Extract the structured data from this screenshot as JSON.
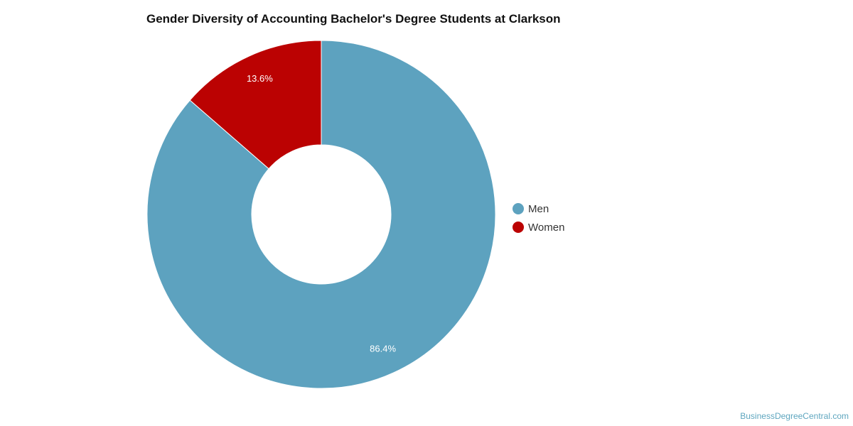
{
  "chart_data": {
    "type": "pie",
    "title": "Gender Diversity of Accounting Bachelor's Degree Students at Clarkson",
    "donut": true,
    "legend_position": "right",
    "slices": [
      {
        "label": "Men",
        "value": 86.4,
        "display": "86.4%",
        "color": "#5da2bf"
      },
      {
        "label": "Women",
        "value": 13.6,
        "display": "13.6%",
        "color": "#bb0202"
      }
    ]
  },
  "source": "BusinessDegreeCentral.com"
}
